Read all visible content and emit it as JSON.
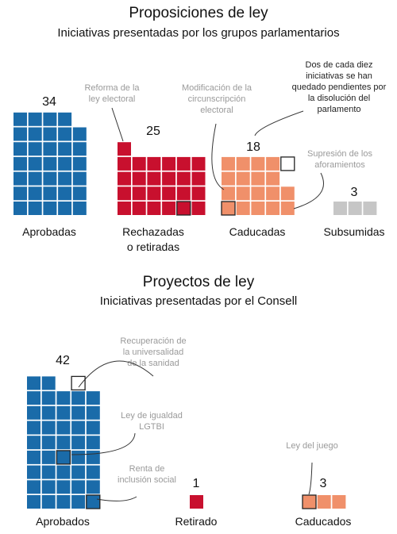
{
  "chart_data": [
    {
      "type": "waffle",
      "title": "Proposiciones de ley",
      "subtitle": "Iniciativas presentadas por los grupos parlamentarios",
      "colors": {
        "Aprobadas": "#1a6ba9",
        "Rechazadas o retiradas": "#c8102e",
        "Caducadas": "#f0906a",
        "Subsumidas": "#c6c6c6"
      },
      "groups": [
        {
          "label_lines": [
            "Aprobadas"
          ],
          "value": 34
        },
        {
          "label_lines": [
            "Rechazadas",
            "o retiradas"
          ],
          "value": 25
        },
        {
          "label_lines": [
            "Caducadas"
          ],
          "value": 18
        },
        {
          "label_lines": [
            "Subsumidas"
          ],
          "value": 3
        }
      ],
      "annotations": [
        {
          "group": 1,
          "lines": [
            "Reforma de la",
            "ley electoral"
          ],
          "style": "gray"
        },
        {
          "group": 2,
          "lines": [
            "Modificación de la",
            "circunscripción",
            "electoral"
          ],
          "style": "gray"
        },
        {
          "group": 2,
          "lines": [
            "Dos de cada diez",
            "iniciativas se han",
            "quedado pendientes por",
            "la disolución del",
            "parlamento"
          ],
          "style": "dark"
        },
        {
          "group": 2,
          "lines": [
            "Supresión de los",
            "aforamientos"
          ],
          "style": "gray"
        }
      ]
    },
    {
      "type": "waffle",
      "title": "Proyectos de ley",
      "subtitle": "Iniciativas presentadas por el Consell",
      "colors": {
        "Aprobados": "#1a6ba9",
        "Retirado": "#c8102e",
        "Caducados": "#f0906a"
      },
      "groups": [
        {
          "label_lines": [
            "Aprobados"
          ],
          "value": 42
        },
        {
          "label_lines": [
            "Retirado"
          ],
          "value": 1
        },
        {
          "label_lines": [
            "Caducados"
          ],
          "value": 3
        }
      ],
      "annotations": [
        {
          "group": 0,
          "lines": [
            "Recuperación de",
            "la universalidad",
            "de la sanidad"
          ],
          "style": "gray"
        },
        {
          "group": 0,
          "lines": [
            "Ley de igualdad",
            "LGTBI"
          ],
          "style": "gray"
        },
        {
          "group": 0,
          "lines": [
            "Renta de",
            "inclusión social"
          ],
          "style": "gray"
        },
        {
          "group": 2,
          "lines": [
            "Ley del juego"
          ],
          "style": "gray"
        }
      ]
    }
  ]
}
